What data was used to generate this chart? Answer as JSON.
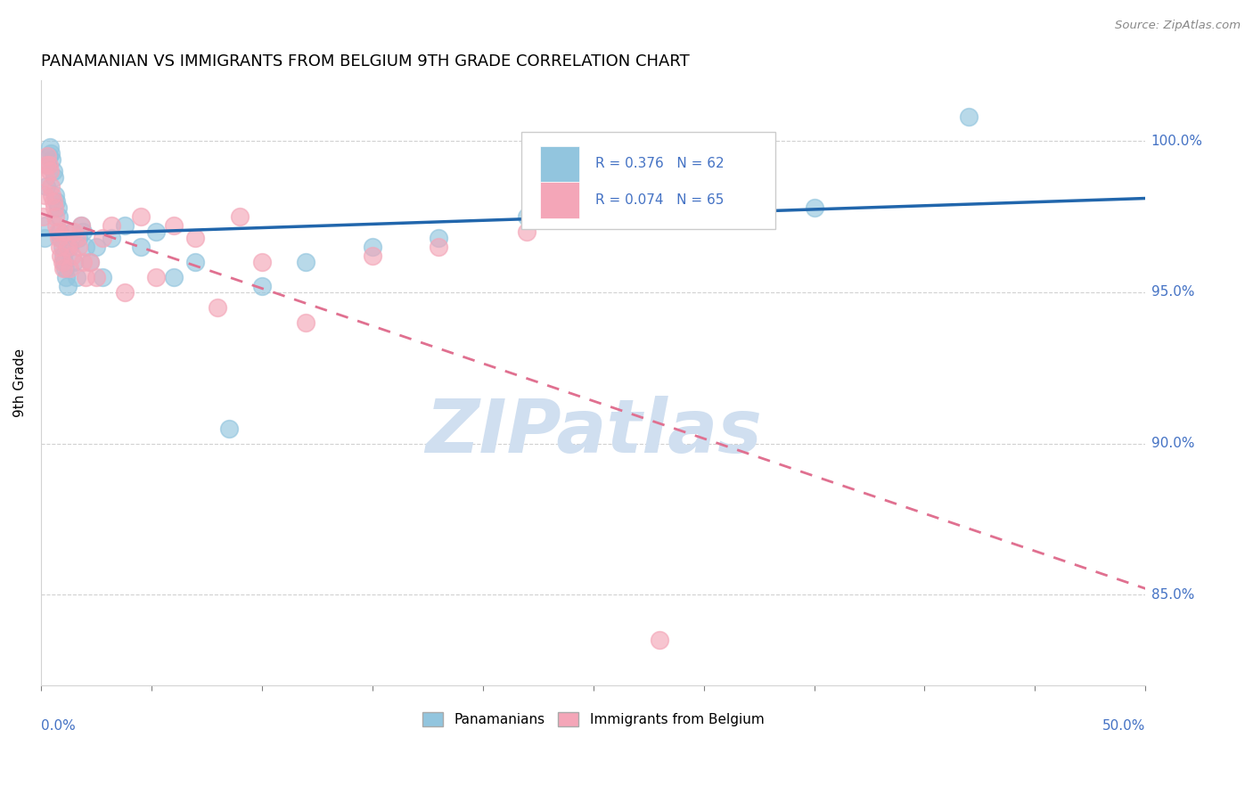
{
  "title": "PANAMANIAN VS IMMIGRANTS FROM BELGIUM 9TH GRADE CORRELATION CHART",
  "source": "Source: ZipAtlas.com",
  "ylabel": "9th Grade",
  "xmin": 0.0,
  "xmax": 50.0,
  "ymin": 82.0,
  "ymax": 102.0,
  "yticks": [
    85.0,
    90.0,
    95.0,
    100.0
  ],
  "blue_R": 0.376,
  "blue_N": 62,
  "pink_R": 0.074,
  "pink_N": 65,
  "blue_color": "#92c5de",
  "pink_color": "#f4a6b8",
  "blue_line_color": "#2166ac",
  "pink_line_color": "#e07090",
  "blue_x": [
    0.15,
    0.2,
    0.25,
    0.3,
    0.35,
    0.4,
    0.45,
    0.5,
    0.55,
    0.6,
    0.65,
    0.7,
    0.75,
    0.8,
    0.85,
    0.9,
    0.95,
    1.0,
    1.05,
    1.1,
    1.15,
    1.2,
    1.3,
    1.4,
    1.5,
    1.6,
    1.7,
    1.8,
    1.9,
    2.0,
    2.2,
    2.5,
    2.8,
    3.2,
    3.8,
    4.5,
    5.2,
    6.0,
    7.0,
    8.5,
    10.0,
    12.0,
    15.0,
    18.0,
    22.0,
    28.0,
    35.0,
    42.0
  ],
  "blue_y": [
    96.8,
    97.2,
    98.5,
    99.2,
    99.5,
    99.8,
    99.6,
    99.4,
    99.0,
    98.8,
    98.2,
    98.0,
    97.8,
    97.5,
    97.0,
    96.8,
    96.5,
    96.2,
    96.0,
    95.8,
    95.5,
    95.2,
    96.5,
    97.0,
    96.0,
    95.5,
    96.8,
    97.2,
    97.0,
    96.5,
    96.0,
    96.5,
    95.5,
    96.8,
    97.2,
    96.5,
    97.0,
    95.5,
    96.0,
    90.5,
    95.2,
    96.0,
    96.5,
    96.8,
    97.5,
    98.0,
    97.8,
    100.8
  ],
  "pink_x": [
    0.1,
    0.15,
    0.2,
    0.25,
    0.3,
    0.35,
    0.4,
    0.45,
    0.5,
    0.55,
    0.6,
    0.65,
    0.7,
    0.75,
    0.8,
    0.85,
    0.9,
    0.95,
    1.0,
    1.1,
    1.2,
    1.3,
    1.4,
    1.5,
    1.6,
    1.7,
    1.8,
    1.9,
    2.0,
    2.2,
    2.5,
    2.8,
    3.2,
    3.8,
    4.5,
    5.2,
    6.0,
    7.0,
    8.0,
    9.0,
    10.0,
    12.0,
    15.0,
    18.0,
    22.0,
    28.0
  ],
  "pink_y": [
    97.5,
    98.2,
    98.8,
    99.2,
    99.5,
    99.2,
    99.0,
    98.5,
    98.2,
    98.0,
    97.8,
    97.5,
    97.2,
    97.0,
    96.8,
    96.5,
    96.2,
    96.0,
    95.8,
    97.0,
    96.5,
    95.8,
    96.2,
    97.0,
    96.8,
    96.5,
    97.2,
    96.0,
    95.5,
    96.0,
    95.5,
    96.8,
    97.2,
    95.0,
    97.5,
    95.5,
    97.2,
    96.8,
    94.5,
    97.5,
    96.0,
    94.0,
    96.2,
    96.5,
    97.0,
    83.5
  ],
  "label_color": "#4472C4",
  "grid_color": "#cccccc",
  "watermark_color": "#d0dff0"
}
